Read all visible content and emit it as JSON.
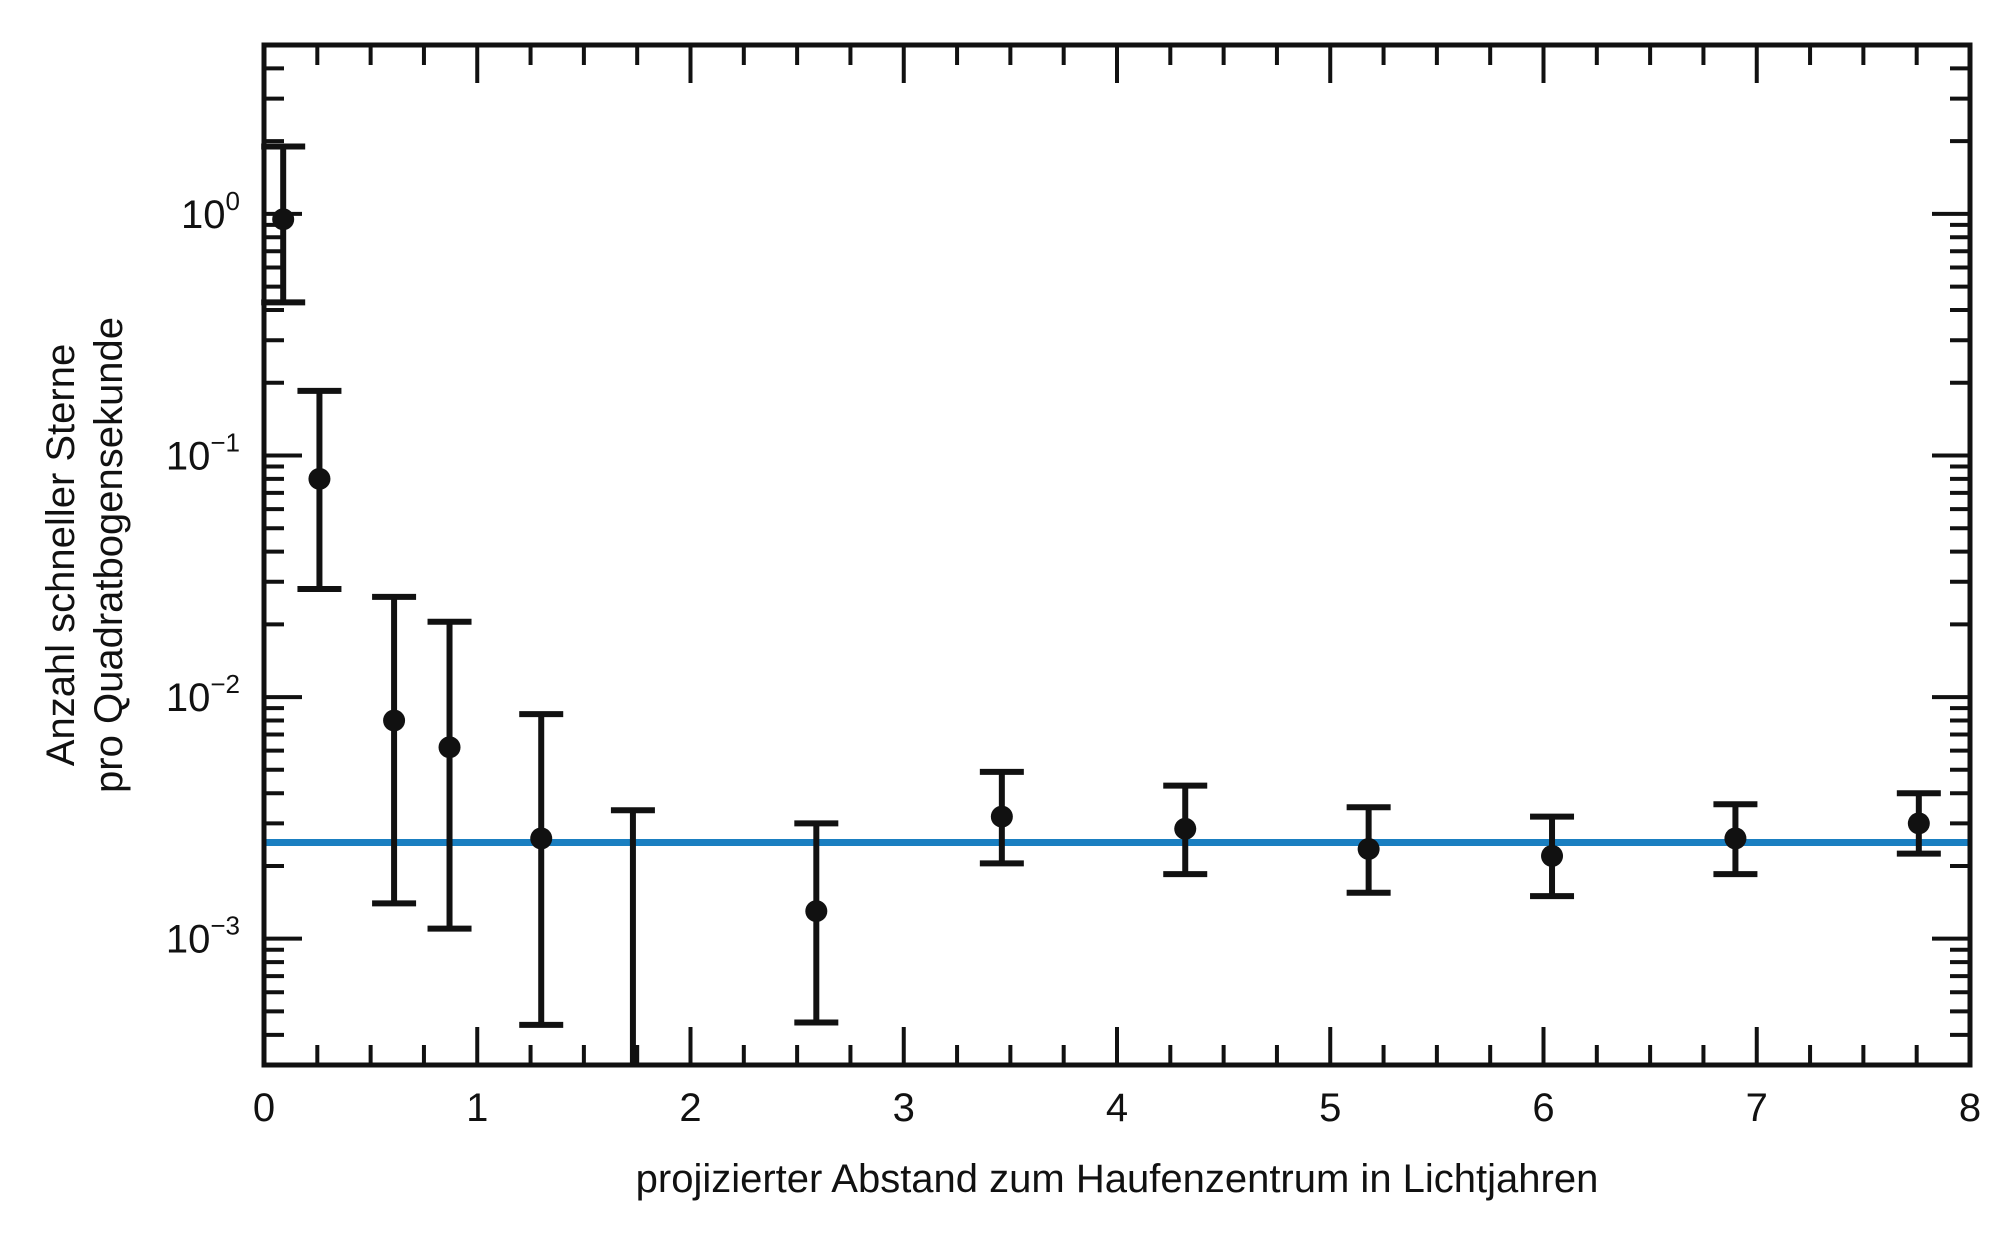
{
  "chart_data": {
    "type": "scatter",
    "title": "",
    "xlabel": "projizierter Abstand zum Haufenzentrum in Lichtjahren",
    "ylabel_lines": [
      "Anzahl schneller Sterne",
      "pro Quadratbogensekunde"
    ],
    "xlim": [
      0,
      8
    ],
    "ylim": [
      0.0003,
      5
    ],
    "yscale": "log",
    "x_ticks": [
      0,
      1,
      2,
      3,
      4,
      5,
      6,
      7,
      8
    ],
    "x_tick_labels": [
      "0",
      "1",
      "2",
      "3",
      "4",
      "5",
      "6",
      "7",
      "8"
    ],
    "y_ticks": [
      {
        "value": 1,
        "base": "10",
        "exp": "0"
      },
      {
        "value": 0.1,
        "base": "10",
        "exp": "−1"
      },
      {
        "value": 0.01,
        "base": "10",
        "exp": "−2"
      },
      {
        "value": 0.001,
        "base": "10",
        "exp": "−3"
      }
    ],
    "grid": false,
    "legend": "none",
    "points": [
      {
        "x": 0.09,
        "y": 0.95,
        "lo": 0.43,
        "hi": 1.9
      },
      {
        "x": 0.26,
        "y": 0.08,
        "lo": 0.028,
        "hi": 0.185
      },
      {
        "x": 0.61,
        "y": 0.008,
        "lo": 0.0014,
        "hi": 0.026
      },
      {
        "x": 0.87,
        "y": 0.0062,
        "lo": 0.0011,
        "hi": 0.0205
      },
      {
        "x": 1.3,
        "y": 0.0026,
        "lo": 0.00044,
        "hi": 0.0085
      },
      {
        "x": 1.73,
        "y": null,
        "lo": 0.0003,
        "hi": 0.0034
      },
      {
        "x": 2.59,
        "y": 0.0013,
        "lo": 0.00045,
        "hi": 0.003
      },
      {
        "x": 3.46,
        "y": 0.0032,
        "lo": 0.00205,
        "hi": 0.0049
      },
      {
        "x": 4.32,
        "y": 0.00285,
        "lo": 0.00185,
        "hi": 0.0043
      },
      {
        "x": 5.18,
        "y": 0.00235,
        "lo": 0.00155,
        "hi": 0.0035
      },
      {
        "x": 6.04,
        "y": 0.0022,
        "lo": 0.0015,
        "hi": 0.0032
      },
      {
        "x": 6.9,
        "y": 0.0026,
        "lo": 0.00185,
        "hi": 0.0036
      },
      {
        "x": 7.76,
        "y": 0.003,
        "lo": 0.00225,
        "hi": 0.004
      }
    ],
    "reference_line": {
      "y": 0.0025,
      "color": "#1a7fc1"
    },
    "colors": {
      "points": "#111111",
      "axes": "#111111"
    }
  }
}
